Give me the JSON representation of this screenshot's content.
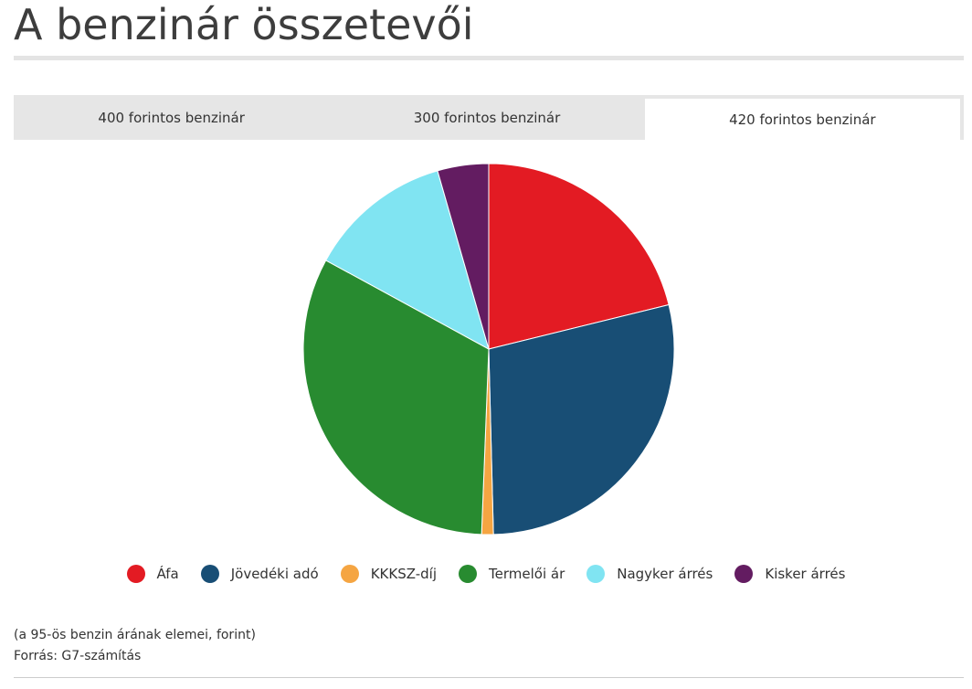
{
  "title": "A benzinár összetevői",
  "tabs": [
    {
      "label": "400 forintos benzinár",
      "active": false
    },
    {
      "label": "300 forintos benzinár",
      "active": false
    },
    {
      "label": "420 forintos benzinár",
      "active": true
    }
  ],
  "note": {
    "line1": "(a 95-ös benzin árának elemei, forint)",
    "line2": "Forrás: G7-számítás"
  },
  "chart_data": {
    "type": "pie",
    "title": "",
    "slices": [
      {
        "name": "Áfa",
        "value": 89.3,
        "color": "#e31b23"
      },
      {
        "name": "Jövedéki adó",
        "value": 120.0,
        "color": "#184e75"
      },
      {
        "name": "KKKSZ-díj",
        "value": 4.3,
        "color": "#f5a542"
      },
      {
        "name": "Termelői ár",
        "value": 136.4,
        "color": "#288b30"
      },
      {
        "name": "Nagyker árrés",
        "value": 53.2,
        "color": "#80e4f2"
      },
      {
        "name": "Kisker árrés",
        "value": 18.8,
        "color": "#631c61"
      }
    ],
    "legend_position": "bottom"
  }
}
